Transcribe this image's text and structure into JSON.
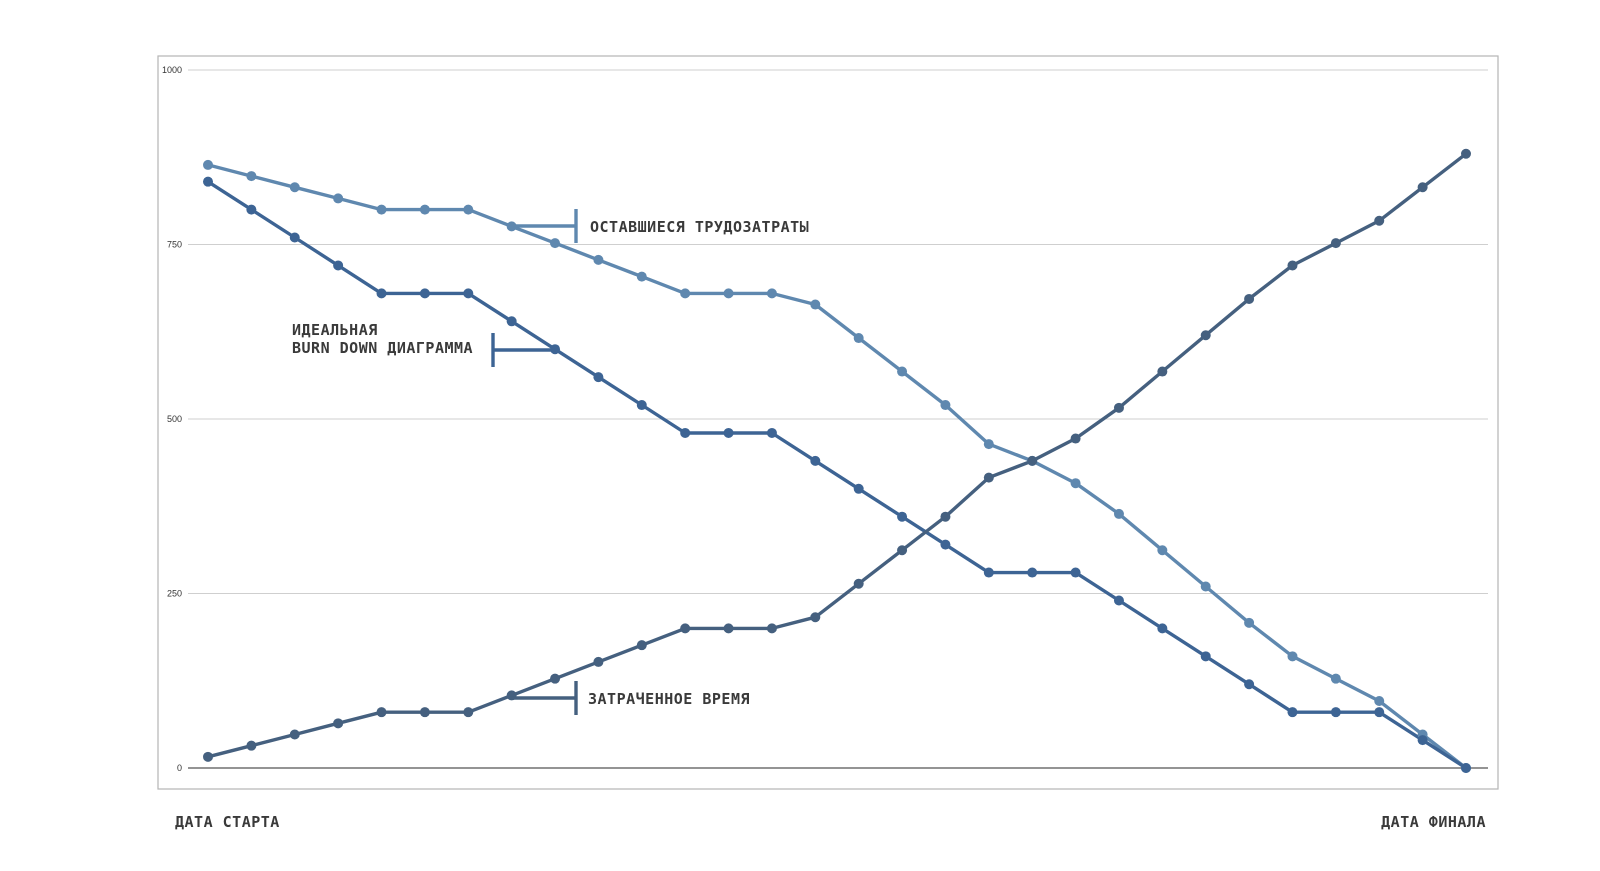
{
  "chart_data": {
    "type": "line",
    "title": "",
    "xlabel": "",
    "ylabel": "",
    "ylim": [
      0,
      1000
    ],
    "yticks": [
      0,
      250,
      500,
      750,
      1000
    ],
    "grid": true,
    "x_start_label": "ДАТА СТАРТА",
    "x_end_label": "ДАТА ФИНАЛА",
    "n_points": 30,
    "series": [
      {
        "name": "ОСТАВШИЕСЯ ТРУДОЗАТРАТЫ",
        "color": "#5f88af",
        "values": [
          864,
          848,
          832,
          816,
          800,
          800,
          800,
          776,
          752,
          728,
          704,
          680,
          680,
          680,
          664,
          616,
          568,
          520,
          464,
          440,
          408,
          364,
          312,
          260,
          208,
          160,
          128,
          96,
          48,
          0
        ]
      },
      {
        "name": "ИДЕАЛЬНАЯ BURN DOWN ДИАГРАММА",
        "color": "#3d6494",
        "values": [
          840,
          800,
          760,
          720,
          680,
          680,
          680,
          640,
          600,
          560,
          520,
          480,
          480,
          480,
          440,
          400,
          360,
          320,
          280,
          280,
          280,
          240,
          200,
          160,
          120,
          80,
          80,
          80,
          40,
          0
        ]
      },
      {
        "name": "ЗАТРАЧЕННОЕ ВРЕМЯ",
        "color": "#45607f",
        "values": [
          16,
          32,
          48,
          64,
          80,
          80,
          80,
          104,
          128,
          152,
          176,
          200,
          200,
          200,
          216,
          264,
          312,
          360,
          416,
          440,
          472,
          516,
          568,
          620,
          672,
          720,
          752,
          784,
          832,
          880
        ]
      }
    ],
    "annotations": [
      {
        "lines": [
          "ОСТАВШИЕСЯ ТРУДОЗАТРАТЫ"
        ],
        "series": 0
      },
      {
        "lines": [
          "ИДЕАЛЬНАЯ",
          "BURN DOWN ДИАГРАММА"
        ],
        "series": 1
      },
      {
        "lines": [
          "ЗАТРАЧЕННОЕ ВРЕМЯ"
        ],
        "series": 2
      }
    ]
  }
}
